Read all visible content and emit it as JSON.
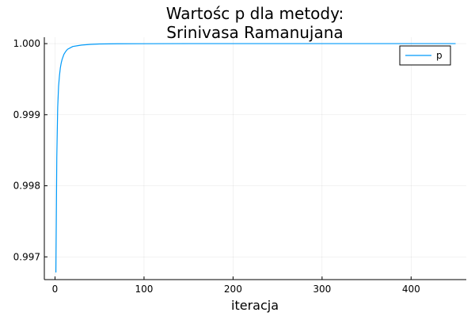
{
  "chart_data": {
    "type": "line",
    "title_lines": [
      "Wartośc p dla metody:",
      "Srinivasa Ramanujana"
    ],
    "xlabel": "iteracja",
    "ylabel": "",
    "xlim": [
      -12,
      462
    ],
    "ylim": [
      0.99668,
      1.00009
    ],
    "x_ticks": [
      0,
      100,
      200,
      300,
      400
    ],
    "y_ticks": [
      0.997,
      0.998,
      0.999,
      1.0
    ],
    "x_tick_labels": [
      "0",
      "100",
      "200",
      "300",
      "400"
    ],
    "y_tick_labels": [
      "0.997",
      "0.998",
      "0.999",
      "1.000"
    ],
    "grid": true,
    "legend_position": "top-right",
    "series": [
      {
        "name": "p",
        "color": "#009af9",
        "x": [
          1,
          2,
          3,
          4,
          5,
          6,
          7,
          8,
          10,
          12,
          14,
          17,
          20,
          25,
          30,
          40,
          50,
          70,
          100,
          150,
          200,
          300,
          400,
          450
        ],
        "y": [
          0.99678,
          0.9984,
          0.9991,
          0.9994,
          0.99955,
          0.99966,
          0.99973,
          0.99978,
          0.99985,
          0.99989,
          0.99992,
          0.99994,
          0.99996,
          0.99997,
          0.99998,
          0.99999,
          0.999995,
          0.999998,
          0.999999,
          1.0,
          1.0,
          1.0,
          1.0,
          1.0
        ]
      }
    ]
  }
}
